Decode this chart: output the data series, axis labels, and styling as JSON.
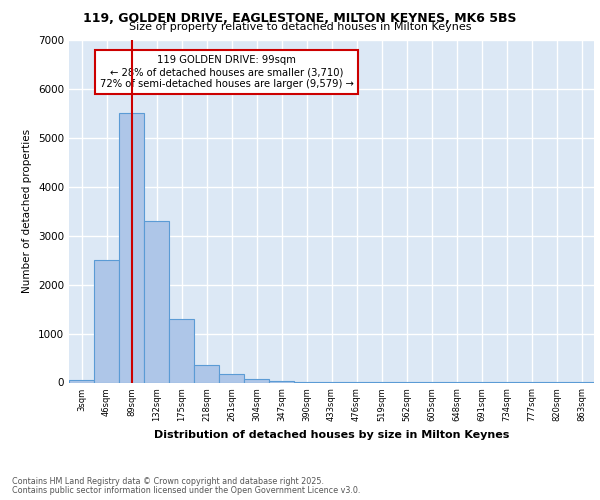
{
  "title_line1": "119, GOLDEN DRIVE, EAGLESTONE, MILTON KEYNES, MK6 5BS",
  "title_line2": "Size of property relative to detached houses in Milton Keynes",
  "xlabel": "Distribution of detached houses by size in Milton Keynes",
  "ylabel": "Number of detached properties",
  "bar_values": [
    50,
    2500,
    5500,
    3300,
    1300,
    350,
    175,
    75,
    30,
    10,
    5,
    2,
    1,
    1,
    1,
    1,
    1,
    1,
    1,
    1,
    1
  ],
  "bin_labels": [
    "3sqm",
    "46sqm",
    "89sqm",
    "132sqm",
    "175sqm",
    "218sqm",
    "261sqm",
    "304sqm",
    "347sqm",
    "390sqm",
    "433sqm",
    "476sqm",
    "519sqm",
    "562sqm",
    "605sqm",
    "648sqm",
    "691sqm",
    "734sqm",
    "777sqm",
    "820sqm",
    "863sqm"
  ],
  "bar_color": "#aec6e8",
  "bar_edge_color": "#5b9bd5",
  "vline_x": 2,
  "vline_color": "#cc0000",
  "annotation_text": "119 GOLDEN DRIVE: 99sqm\n← 28% of detached houses are smaller (3,710)\n72% of semi-detached houses are larger (9,579) →",
  "annotation_box_color": "#ffffff",
  "annotation_box_edge": "#cc0000",
  "ylim": [
    0,
    7000
  ],
  "yticks": [
    0,
    1000,
    2000,
    3000,
    4000,
    5000,
    6000,
    7000
  ],
  "footer_line1": "Contains HM Land Registry data © Crown copyright and database right 2025.",
  "footer_line2": "Contains public sector information licensed under the Open Government Licence v3.0.",
  "background_color": "#dce8f5",
  "grid_color": "#ffffff"
}
